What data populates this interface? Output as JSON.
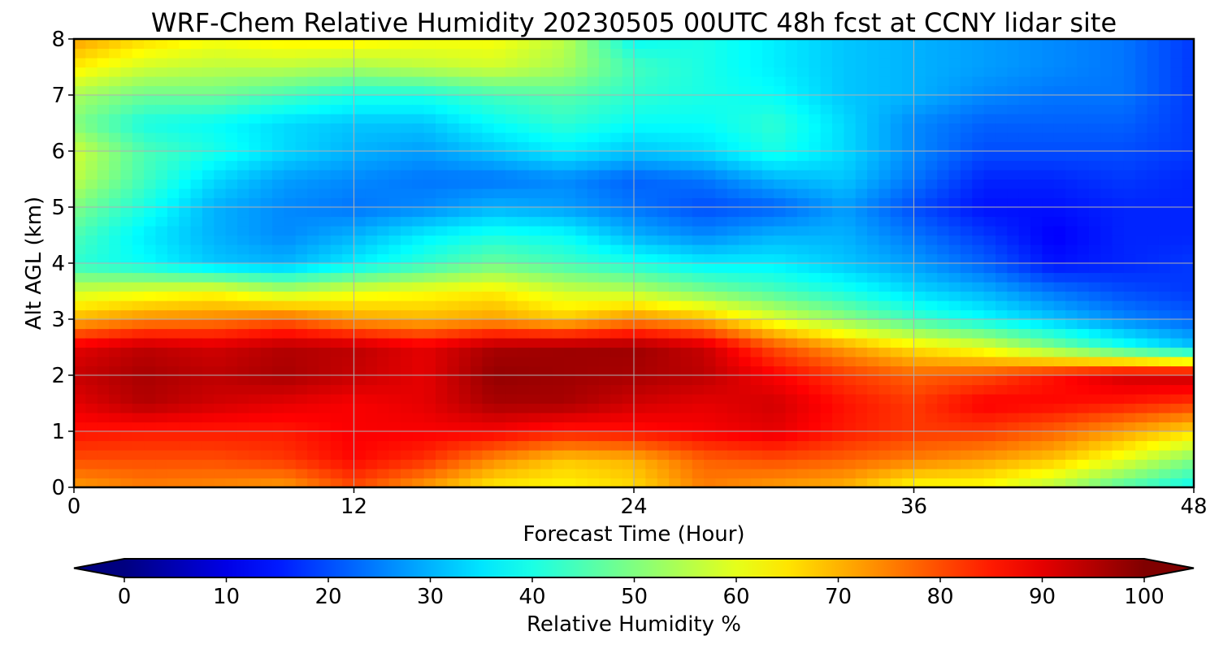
{
  "chart_data": {
    "type": "heatmap",
    "title": "WRF-Chem Relative Humidity 20230505 00UTC 48h fcst at CCNY lidar site",
    "xlabel": "Forecast Time (Hour)",
    "ylabel": "Alt AGL (km)",
    "xlim": [
      0,
      48
    ],
    "ylim": [
      0,
      8
    ],
    "x_ticks": [
      0,
      12,
      24,
      36,
      48
    ],
    "y_ticks": [
      0,
      1,
      2,
      3,
      4,
      5,
      6,
      7,
      8
    ],
    "grid": true,
    "colormap": "jet",
    "colorbar": {
      "label": "Relative Humidity %",
      "orientation": "horizontal",
      "placement": "bottom",
      "range": [
        0,
        100
      ],
      "ticks": [
        0,
        10,
        20,
        30,
        40,
        50,
        60,
        70,
        80,
        90,
        100
      ],
      "extend": "both"
    },
    "x": [
      0,
      3,
      6,
      9,
      12,
      15,
      18,
      21,
      24,
      27,
      30,
      33,
      36,
      39,
      42,
      45,
      48
    ],
    "y": [
      0,
      0.5,
      1,
      1.5,
      2,
      2.5,
      3,
      3.5,
      4,
      4.5,
      5,
      5.5,
      6,
      6.5,
      7,
      7.5,
      8
    ],
    "z": [
      [
        72,
        75,
        74,
        72,
        80,
        72,
        64,
        63,
        66,
        75,
        72,
        70,
        62,
        62,
        55,
        45,
        38
      ],
      [
        80,
        80,
        80,
        82,
        87,
        83,
        74,
        68,
        70,
        78,
        80,
        78,
        75,
        72,
        68,
        60,
        50
      ],
      [
        86,
        85,
        85,
        85,
        88,
        88,
        88,
        85,
        86,
        88,
        90,
        85,
        82,
        82,
        78,
        72,
        66
      ],
      [
        90,
        95,
        92,
        90,
        88,
        90,
        96,
        96,
        92,
        90,
        92,
        86,
        82,
        88,
        87,
        85,
        82
      ],
      [
        93,
        96,
        94,
        96,
        93,
        90,
        98,
        97,
        96,
        94,
        88,
        82,
        78,
        80,
        86,
        92,
        93
      ],
      [
        90,
        94,
        92,
        95,
        94,
        90,
        96,
        97,
        97,
        93,
        80,
        72,
        65,
        60,
        50,
        40,
        32
      ],
      [
        70,
        74,
        75,
        78,
        72,
        70,
        72,
        68,
        74,
        70,
        60,
        52,
        44,
        38,
        32,
        26,
        22
      ],
      [
        58,
        60,
        62,
        56,
        60,
        62,
        64,
        58,
        56,
        50,
        45,
        40,
        34,
        30,
        24,
        20,
        18
      ],
      [
        42,
        38,
        32,
        30,
        36,
        42,
        48,
        44,
        40,
        36,
        36,
        32,
        28,
        22,
        14,
        16,
        18
      ],
      [
        45,
        36,
        30,
        26,
        30,
        36,
        40,
        38,
        30,
        26,
        30,
        30,
        24,
        18,
        12,
        16,
        16
      ],
      [
        50,
        40,
        30,
        26,
        24,
        26,
        30,
        28,
        24,
        20,
        22,
        28,
        20,
        14,
        14,
        16,
        16
      ],
      [
        56,
        44,
        34,
        28,
        26,
        24,
        24,
        26,
        22,
        24,
        30,
        32,
        24,
        16,
        16,
        18,
        16
      ],
      [
        58,
        45,
        40,
        34,
        30,
        28,
        32,
        36,
        32,
        34,
        40,
        34,
        26,
        20,
        20,
        20,
        18
      ],
      [
        50,
        40,
        38,
        34,
        32,
        32,
        38,
        42,
        38,
        38,
        42,
        34,
        26,
        22,
        22,
        22,
        18
      ],
      [
        54,
        48,
        48,
        44,
        40,
        40,
        44,
        46,
        42,
        40,
        38,
        32,
        30,
        26,
        24,
        24,
        18
      ],
      [
        64,
        58,
        56,
        56,
        54,
        56,
        58,
        54,
        44,
        40,
        36,
        32,
        30,
        28,
        26,
        24,
        18
      ],
      [
        72,
        66,
        62,
        64,
        64,
        62,
        62,
        56,
        38,
        40,
        36,
        32,
        30,
        28,
        26,
        24,
        18
      ]
    ]
  }
}
